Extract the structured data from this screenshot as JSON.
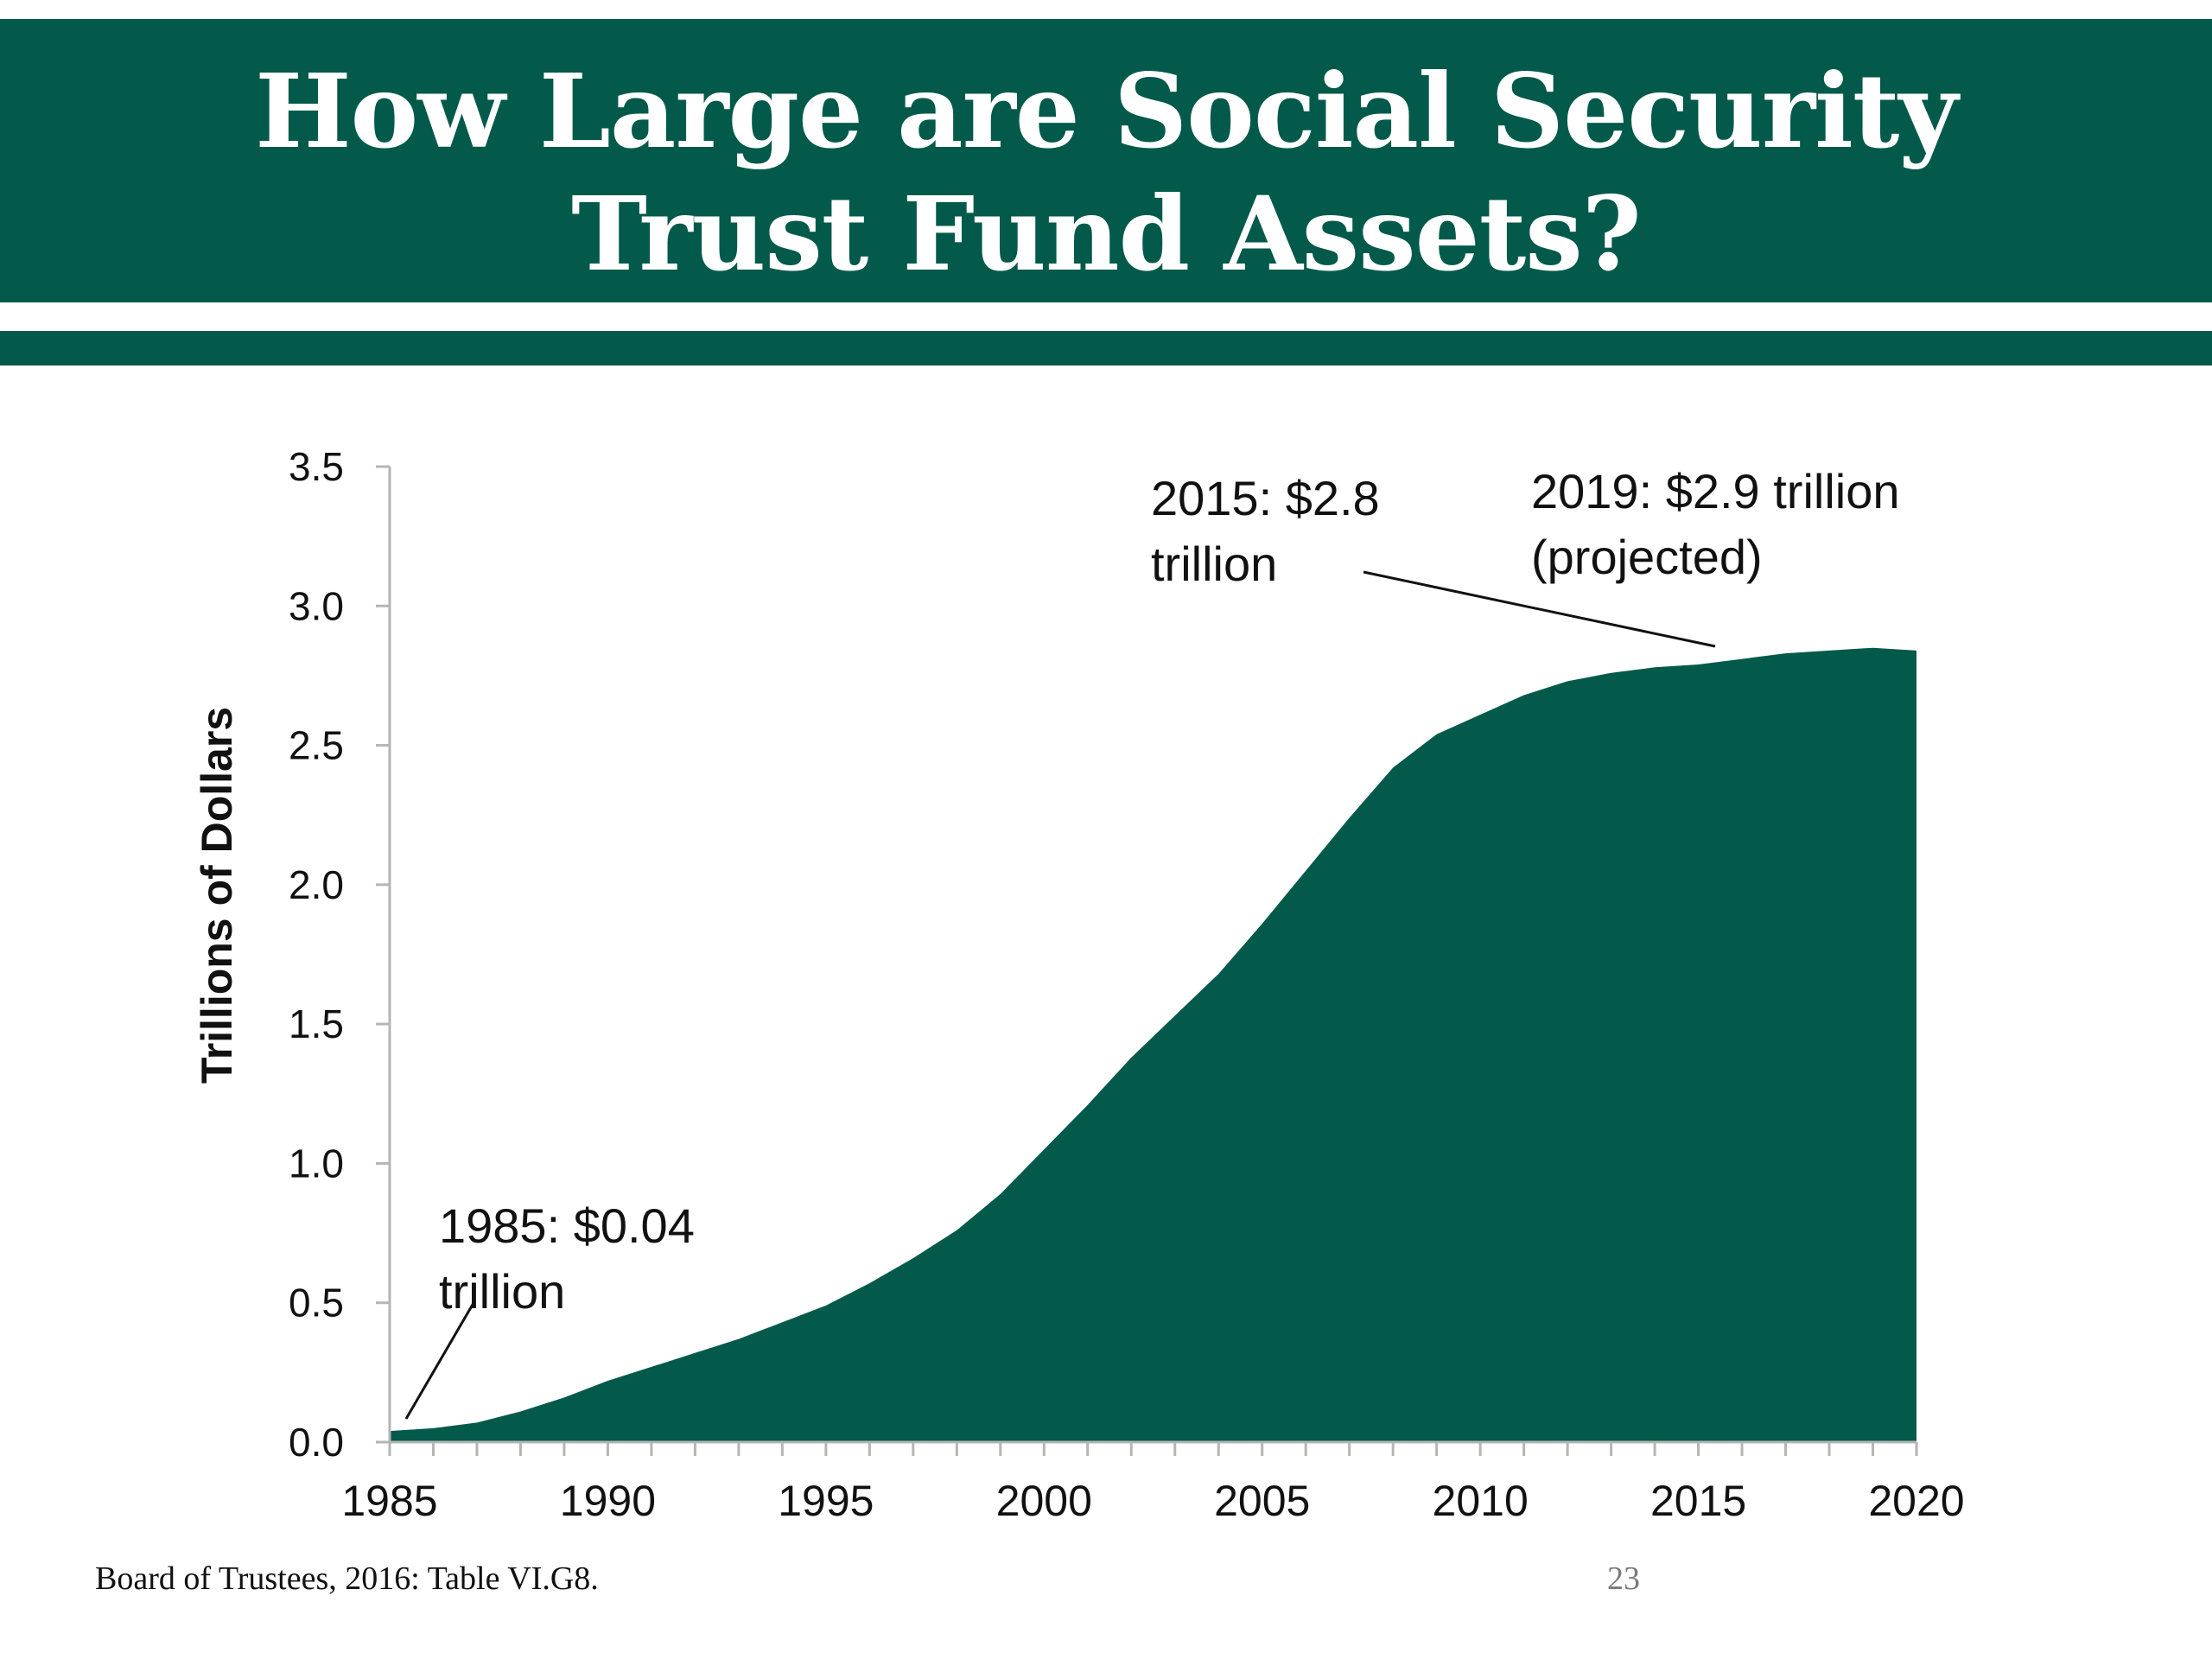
{
  "header": {
    "title_line1": "How Large are Social Security",
    "title_line2": "Trust Fund Assets?",
    "band_color": "#035a4a"
  },
  "footer": {
    "source": "Board of Trustees, 2016: Table VI.G8.",
    "page_number": "23"
  },
  "chart_data": {
    "type": "area",
    "ylabel": "Trillions of Dollars",
    "xlabel": "",
    "xlim": [
      1985,
      2020
    ],
    "ylim": [
      0,
      3.5
    ],
    "x_ticks": [
      "1985",
      "1990",
      "1995",
      "2000",
      "2005",
      "2010",
      "2015",
      "2020"
    ],
    "y_ticks": [
      "0.0",
      "0.5",
      "1.0",
      "1.5",
      "2.0",
      "2.5",
      "3.0",
      "3.5"
    ],
    "grid": false,
    "legend": "none",
    "fill_color": "#035a4a",
    "series": [
      {
        "x": [
          1985,
          1986,
          1987,
          1988,
          1989,
          1990,
          1991,
          1992,
          1993,
          1994,
          1995,
          1996,
          1997,
          1998,
          1999,
          2000,
          2001,
          2002,
          2003,
          2004,
          2005,
          2006,
          2007,
          2008,
          2009,
          2010,
          2011,
          2012,
          2013,
          2014,
          2015,
          2016,
          2017,
          2018,
          2019,
          2020
        ],
        "values": [
          0.04,
          0.05,
          0.07,
          0.11,
          0.16,
          0.22,
          0.27,
          0.32,
          0.37,
          0.43,
          0.49,
          0.57,
          0.66,
          0.76,
          0.89,
          1.05,
          1.21,
          1.38,
          1.53,
          1.68,
          1.86,
          2.05,
          2.24,
          2.42,
          2.54,
          2.61,
          2.68,
          2.73,
          2.76,
          2.78,
          2.79,
          2.81,
          2.83,
          2.84,
          2.85,
          2.84
        ]
      }
    ],
    "annotations": [
      {
        "lines": [
          "1985: $0.04",
          "trillion"
        ],
        "x": 1985,
        "y": 0.04
      },
      {
        "lines": [
          "2015: $2.8",
          "trillion"
        ],
        "x": 2015,
        "y": 2.79
      },
      {
        "lines": [
          "2019: $2.9 trillion",
          "(projected)"
        ],
        "x": 2019,
        "y": 2.85
      }
    ]
  }
}
